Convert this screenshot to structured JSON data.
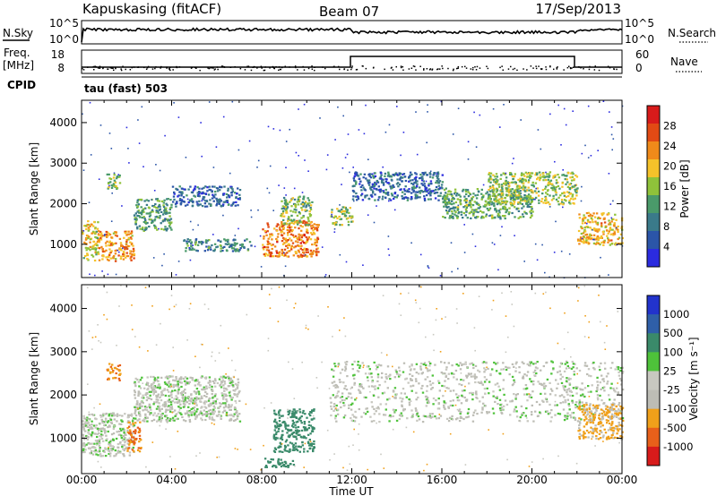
{
  "header": {
    "station": "Kapuskasing (fitACF)",
    "beam": "Beam 07",
    "date": "17/Sep/2013"
  },
  "noise_panel": {
    "left_label": "N.Sky",
    "right_label": "N.Search",
    "left_ticks": [
      "10^5",
      "10^0"
    ],
    "right_ticks": [
      "10^5",
      "10^0"
    ]
  },
  "freq_panel": {
    "left_label_1": "Freq.",
    "left_label_2": "[MHz]",
    "left_ticks": [
      "18",
      "8"
    ],
    "right_label": "Nave",
    "right_ticks": [
      "60",
      "0"
    ]
  },
  "cpid": {
    "label": "CPID",
    "value": "tau (fast) 503"
  },
  "colors": {
    "power_scale": [
      "#2b2bdf",
      "#2b55a8",
      "#3a7a8a",
      "#4a9a6a",
      "#8fc23a",
      "#f5c22a",
      "#f08a1a",
      "#e24a14",
      "#d81b1b"
    ],
    "velocity_scale": [
      "#2233cc",
      "#2f5fa8",
      "#3a8a6a",
      "#4ec23a",
      "#c8c8c0",
      "#bdbdb5",
      "#f0a01a",
      "#e8601a",
      "#d81b1b"
    ]
  },
  "chart_data": [
    {
      "type": "heatmap",
      "name": "power",
      "ylabel": "Slant Range [km]",
      "yticks": [
        "1000",
        "2000",
        "3000",
        "4000"
      ],
      "ylim": [
        180,
        4550
      ],
      "xlim": [
        "00:00",
        "24:00"
      ],
      "colorbar": {
        "label": "Power [dB]",
        "ticks": [
          "28",
          "24",
          "20",
          "16",
          "12",
          "8",
          "4"
        ],
        "range": [
          0,
          32
        ]
      },
      "echo_regions": [
        {
          "t": [
            0.0,
            0.7
          ],
          "r": [
            620,
            1600
          ],
          "p": 18
        },
        {
          "t": [
            0.7,
            2.3
          ],
          "r": [
            600,
            1350
          ],
          "p": 22
        },
        {
          "t": [
            1.1,
            1.7
          ],
          "r": [
            2350,
            2750
          ],
          "p": 16
        },
        {
          "t": [
            2.3,
            4.0
          ],
          "r": [
            1350,
            2150
          ],
          "p": 12
        },
        {
          "t": [
            4.0,
            7.0
          ],
          "r": [
            1950,
            2450
          ],
          "p": 7
        },
        {
          "t": [
            4.5,
            7.5
          ],
          "r": [
            850,
            1150
          ],
          "p": 10
        },
        {
          "t": [
            8.0,
            10.5
          ],
          "r": [
            700,
            1600
          ],
          "p": 24
        },
        {
          "t": [
            8.8,
            10.2
          ],
          "r": [
            1500,
            2200
          ],
          "p": 14
        },
        {
          "t": [
            11.0,
            12.0
          ],
          "r": [
            1500,
            1950
          ],
          "p": 16
        },
        {
          "t": [
            12.0,
            16.0
          ],
          "r": [
            2100,
            2800
          ],
          "p": 7
        },
        {
          "t": [
            16.0,
            20.0
          ],
          "r": [
            1650,
            2400
          ],
          "p": 13
        },
        {
          "t": [
            18.0,
            22.0
          ],
          "r": [
            2000,
            2800
          ],
          "p": 16
        },
        {
          "t": [
            22.0,
            24.0
          ],
          "r": [
            1000,
            1800
          ],
          "p": 20
        }
      ]
    },
    {
      "type": "heatmap",
      "name": "velocity",
      "ylabel": "Slant Range [km]",
      "yticks": [
        "1000",
        "2000",
        "3000",
        "4000"
      ],
      "ylim": [
        180,
        4550
      ],
      "xlim": [
        "00:00",
        "24:00"
      ],
      "xticks": [
        "00:00",
        "04:00",
        "08:00",
        "12:00",
        "16:00",
        "20:00",
        "00:00"
      ],
      "xlabel": "Time UT",
      "colorbar": {
        "label": "Velocity [m s⁻¹]",
        "ticks": [
          "1000",
          "500",
          "100",
          "25",
          "-25",
          "-100",
          "-500",
          "-1000"
        ]
      },
      "echo_regions": [
        {
          "t": [
            0.0,
            2.3
          ],
          "r": [
            600,
            1600
          ],
          "v": 0
        },
        {
          "t": [
            1.1,
            1.7
          ],
          "r": [
            2350,
            2750
          ],
          "v": -300
        },
        {
          "t": [
            2.0,
            2.6
          ],
          "r": [
            700,
            1400
          ],
          "v": -300
        },
        {
          "t": [
            2.3,
            7.0
          ],
          "r": [
            1400,
            2450
          ],
          "v": 0
        },
        {
          "t": [
            8.5,
            10.3
          ],
          "r": [
            700,
            1700
          ],
          "v": 120
        },
        {
          "t": [
            8.0,
            9.5
          ],
          "r": [
            350,
            550
          ],
          "v": 120
        },
        {
          "t": [
            11.0,
            24.0
          ],
          "r": [
            1400,
            2800
          ],
          "v": 0
        },
        {
          "t": [
            22.0,
            24.0
          ],
          "r": [
            1000,
            1800
          ],
          "v": -80
        }
      ]
    }
  ]
}
